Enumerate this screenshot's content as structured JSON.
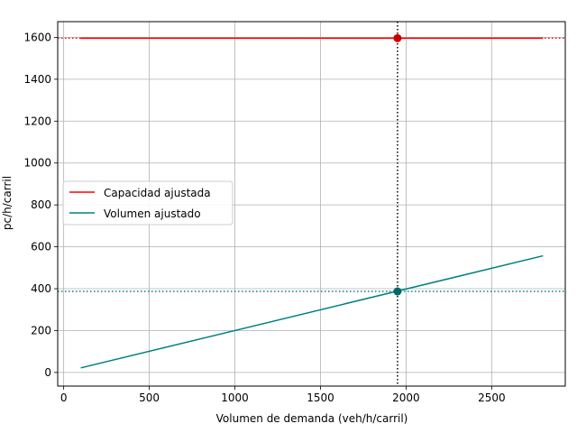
{
  "chart_data": {
    "type": "line",
    "title": "",
    "xlabel": "Volumen de demanda (veh/h/carril)",
    "ylabel": "pc/h/carril",
    "xlim": [
      -35,
      2930
    ],
    "ylim": [
      -65,
      1675
    ],
    "xticks": [
      0,
      500,
      1000,
      1500,
      2000,
      2500
    ],
    "yticks": [
      0,
      200,
      400,
      600,
      800,
      1000,
      1200,
      1400,
      1600
    ],
    "grid": true,
    "legend_position": "center-left",
    "series": [
      {
        "name": "Capacidad ajustada",
        "color": "#ff0000",
        "x": [
          100,
          2800
        ],
        "y": [
          1596,
          1596
        ]
      },
      {
        "name": "Volumen ajustado",
        "color": "#008080",
        "x": [
          100,
          2800
        ],
        "y": [
          22,
          557
        ]
      }
    ],
    "reference_lines": {
      "vertical_x": 1950,
      "vertical_color": "#000000",
      "capacity_y": 1596,
      "capacity_color": "#ff0000",
      "volume_y": 387,
      "volume_color": "#008080"
    },
    "markers": [
      {
        "x": 1950,
        "y": 1596,
        "color": "#cc0000"
      },
      {
        "x": 1950,
        "y": 387,
        "color": "#006666"
      }
    ]
  }
}
